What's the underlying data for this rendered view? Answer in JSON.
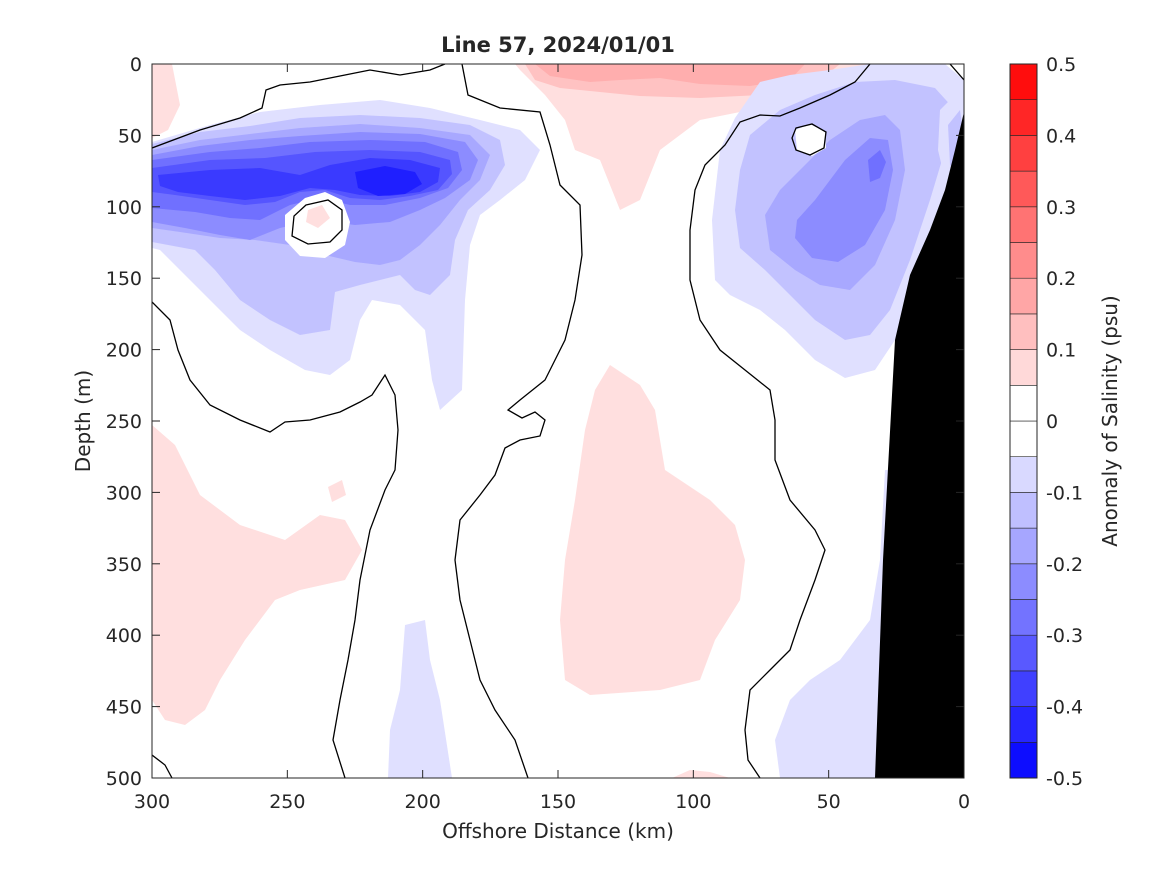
{
  "chart_data": {
    "type": "heatmap",
    "title": "Line 57, 2024/01/01",
    "xlabel": "Offshore Distance (km)",
    "ylabel": "Depth (m)",
    "xlim": [
      300,
      0
    ],
    "ylim": [
      0,
      500
    ],
    "x_reversed": true,
    "y_reversed": true,
    "x_ticks": [
      "300",
      "250",
      "200",
      "150",
      "100",
      "50",
      "0"
    ],
    "y_ticks": [
      "0",
      "50",
      "100",
      "150",
      "200",
      "250",
      "300",
      "350",
      "400",
      "450",
      "500"
    ],
    "colorbar": {
      "label": "Anomaly of Salinity (psu)",
      "range": [
        -0.5,
        0.5
      ],
      "ticks": [
        "0.5",
        "0.4",
        "0.3",
        "0.2",
        "0.1",
        "0",
        "-0.1",
        "-0.2",
        "-0.3",
        "-0.4",
        "-0.5"
      ],
      "levels": [
        -0.5,
        -0.45,
        -0.4,
        -0.35,
        -0.3,
        -0.25,
        -0.2,
        -0.15,
        -0.1,
        -0.05,
        0,
        0.05,
        0.1,
        0.15,
        0.2,
        0.25,
        0.3,
        0.35,
        0.4,
        0.45,
        0.5
      ]
    },
    "features": [
      {
        "name": "negative anomaly core",
        "distance_km": 210,
        "depth_m": 82,
        "value": -0.4
      },
      {
        "name": "negative anomaly core",
        "distance_km": 280,
        "depth_m": 90,
        "value": -0.35
      },
      {
        "name": "negative anomaly core",
        "distance_km": 35,
        "depth_m": 75,
        "value": -0.25
      },
      {
        "name": "positive anomaly",
        "distance_km": 90,
        "depth_m": 15,
        "value": 0.15
      },
      {
        "name": "positive anomaly",
        "distance_km": 110,
        "depth_m": 330,
        "value": 0.05
      },
      {
        "name": "positive anomaly",
        "distance_km": 280,
        "depth_m": 350,
        "value": 0.05
      }
    ],
    "grid": false,
    "legend": "colorbar-right",
    "bathymetry_color": "#000000",
    "colors": {
      "negative_max": "#0000ff",
      "positive_max": "#ff0000",
      "neutral": "#ffffff"
    }
  }
}
